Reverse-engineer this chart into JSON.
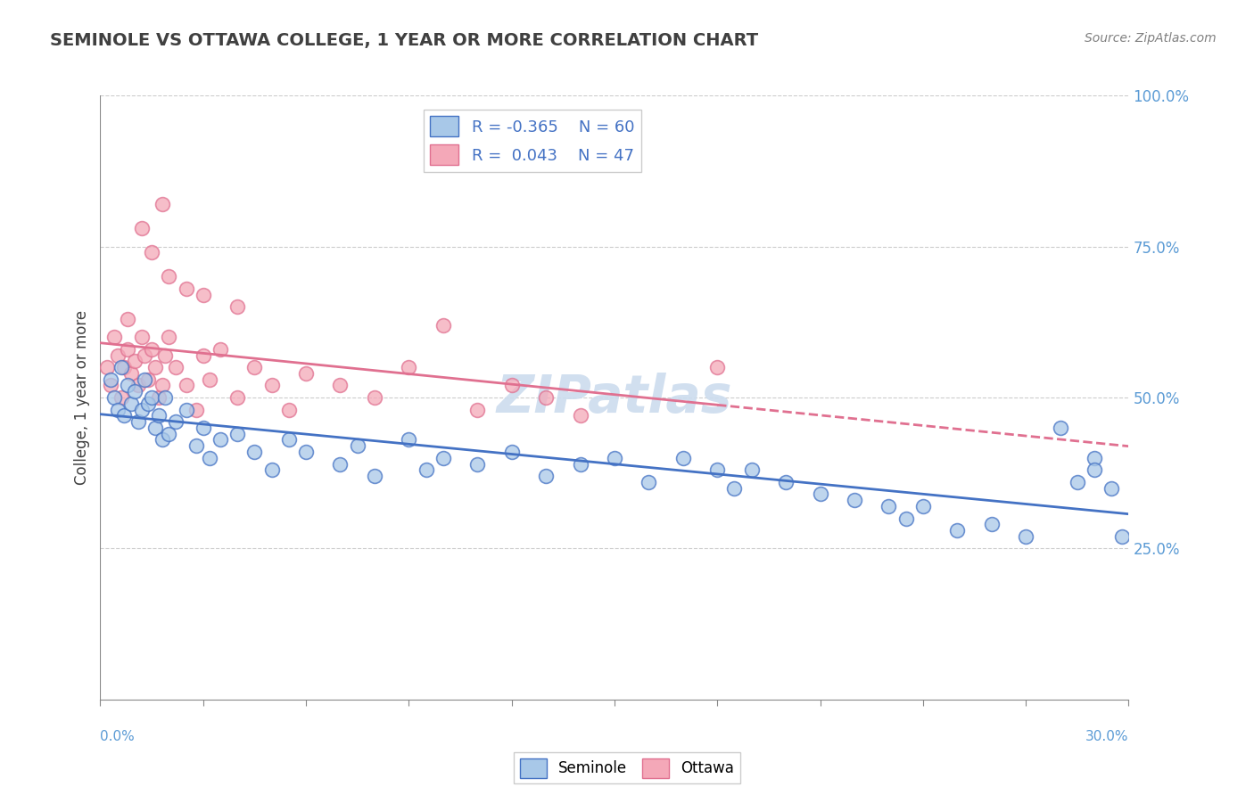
{
  "title": "SEMINOLE VS OTTAWA COLLEGE, 1 YEAR OR MORE CORRELATION CHART",
  "source": "Source: ZipAtlas.com",
  "ylabel": "College, 1 year or more",
  "xlim": [
    0.0,
    30.0
  ],
  "ylim": [
    0.0,
    100.0
  ],
  "ytick_vals": [
    25.0,
    50.0,
    75.0,
    100.0
  ],
  "ytick_labels": [
    "25.0%",
    "50.0%",
    "75.0%",
    "100.0%"
  ],
  "xtick_vals": [
    0,
    3,
    6,
    9,
    12,
    15,
    18,
    21,
    24,
    27,
    30
  ],
  "seminole_color": "#a8c8e8",
  "ottawa_color": "#f4a8b8",
  "seminole_edge_color": "#4472c4",
  "ottawa_edge_color": "#e07090",
  "seminole_line_color": "#4472c4",
  "ottawa_line_color": "#e07090",
  "watermark": "ZIPatlas",
  "watermark_color": "#ccdcee",
  "grid_color": "#cccccc",
  "title_color": "#404040",
  "source_color": "#808080",
  "ylabel_color": "#404040",
  "tick_label_color": "#5b9bd5",
  "legend_r1": "R = -0.365",
  "legend_n1": "N = 60",
  "legend_r2": "R =  0.043",
  "legend_n2": "N = 47",
  "seminole_x": [
    0.3,
    0.4,
    0.5,
    0.6,
    0.7,
    0.8,
    0.9,
    1.0,
    1.1,
    1.2,
    1.3,
    1.4,
    1.5,
    1.6,
    1.7,
    1.8,
    1.9,
    2.0,
    2.2,
    2.5,
    2.8,
    3.0,
    3.2,
    3.5,
    4.0,
    4.5,
    5.0,
    5.5,
    6.0,
    7.0,
    7.5,
    8.0,
    9.0,
    9.5,
    10.0,
    11.0,
    12.0,
    13.0,
    14.0,
    15.0,
    16.0,
    17.0,
    18.0,
    18.5,
    19.0,
    20.0,
    21.0,
    22.0,
    23.0,
    23.5,
    24.0,
    25.0,
    26.0,
    27.0,
    28.0,
    28.5,
    29.0,
    29.0,
    29.5,
    29.8
  ],
  "seminole_y": [
    53.0,
    50.0,
    48.0,
    55.0,
    47.0,
    52.0,
    49.0,
    51.0,
    46.0,
    48.0,
    53.0,
    49.0,
    50.0,
    45.0,
    47.0,
    43.0,
    50.0,
    44.0,
    46.0,
    48.0,
    42.0,
    45.0,
    40.0,
    43.0,
    44.0,
    41.0,
    38.0,
    43.0,
    41.0,
    39.0,
    42.0,
    37.0,
    43.0,
    38.0,
    40.0,
    39.0,
    41.0,
    37.0,
    39.0,
    40.0,
    36.0,
    40.0,
    38.0,
    35.0,
    38.0,
    36.0,
    34.0,
    33.0,
    32.0,
    30.0,
    32.0,
    28.0,
    29.0,
    27.0,
    45.0,
    36.0,
    40.0,
    38.0,
    35.0,
    27.0
  ],
  "ottawa_x": [
    0.2,
    0.3,
    0.4,
    0.5,
    0.6,
    0.7,
    0.8,
    0.9,
    1.0,
    1.1,
    1.2,
    1.3,
    1.4,
    1.5,
    1.6,
    1.7,
    1.8,
    1.9,
    2.0,
    2.2,
    2.5,
    2.8,
    3.0,
    3.2,
    3.5,
    4.0,
    4.5,
    5.0,
    5.5,
    6.0,
    7.0,
    8.0,
    9.0,
    10.0,
    11.0,
    12.0,
    13.0,
    14.0,
    18.0,
    2.0,
    3.0,
    1.5,
    2.5,
    4.0,
    1.2,
    0.8,
    1.8
  ],
  "ottawa_y": [
    55.0,
    52.0,
    60.0,
    57.0,
    50.0,
    55.0,
    58.0,
    54.0,
    56.0,
    52.0,
    60.0,
    57.0,
    53.0,
    58.0,
    55.0,
    50.0,
    52.0,
    57.0,
    60.0,
    55.0,
    52.0,
    48.0,
    57.0,
    53.0,
    58.0,
    50.0,
    55.0,
    52.0,
    48.0,
    54.0,
    52.0,
    50.0,
    55.0,
    62.0,
    48.0,
    52.0,
    50.0,
    47.0,
    55.0,
    70.0,
    67.0,
    74.0,
    68.0,
    65.0,
    78.0,
    63.0,
    82.0
  ]
}
